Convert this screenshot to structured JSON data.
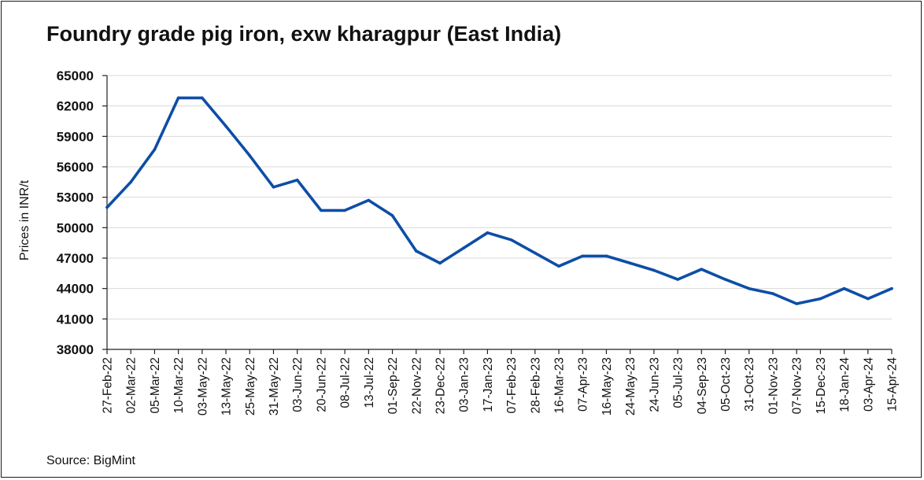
{
  "chart_data": {
    "type": "line",
    "title": "Foundry grade pig iron, exw kharagpur (East India)",
    "xlabel": "",
    "ylabel": "Prices in INR/t",
    "ylim": [
      38000,
      65000
    ],
    "yticks": [
      38000,
      41000,
      44000,
      47000,
      50000,
      53000,
      56000,
      59000,
      62000,
      65000
    ],
    "grid": "horizontal",
    "line_color": "#0d4ea6",
    "categories": [
      "27-Feb-22",
      "02-Mar-22",
      "05-Mar-22",
      "10-Mar-22",
      "03-May-22",
      "13-May-22",
      "25-May-22",
      "31-May-22",
      "03-Jun-22",
      "20-Jun-22",
      "08-Jul-22",
      "13-Jul-22",
      "01-Sep-22",
      "22-Nov-22",
      "23-Dec-22",
      "03-Jan-23",
      "17-Jan-23",
      "07-Feb-23",
      "28-Feb-23",
      "16-Mar-23",
      "07-Apr-23",
      "16-May-23",
      "24-May-23",
      "24-Jun-23",
      "05-Jul-23",
      "04-Sep-23",
      "05-Oct-23",
      "31-Oct-23",
      "01-Nov-23",
      "07-Nov-23",
      "15-Dec-23",
      "18-Jan-24",
      "03-Apr-24",
      "15-Apr-24"
    ],
    "series": [
      {
        "values": [
          52000,
          54500,
          57700,
          62800,
          62800,
          60000,
          57100,
          54000,
          54700,
          51700,
          51700,
          52700,
          51200,
          47700,
          46500,
          48000,
          49500,
          48800,
          47500,
          46200,
          47200,
          47200,
          46500,
          45800,
          44900,
          45900,
          44900,
          44000,
          43500,
          42500,
          43000,
          44000,
          43000,
          44000
        ]
      }
    ]
  },
  "source": "Source: BigMint"
}
